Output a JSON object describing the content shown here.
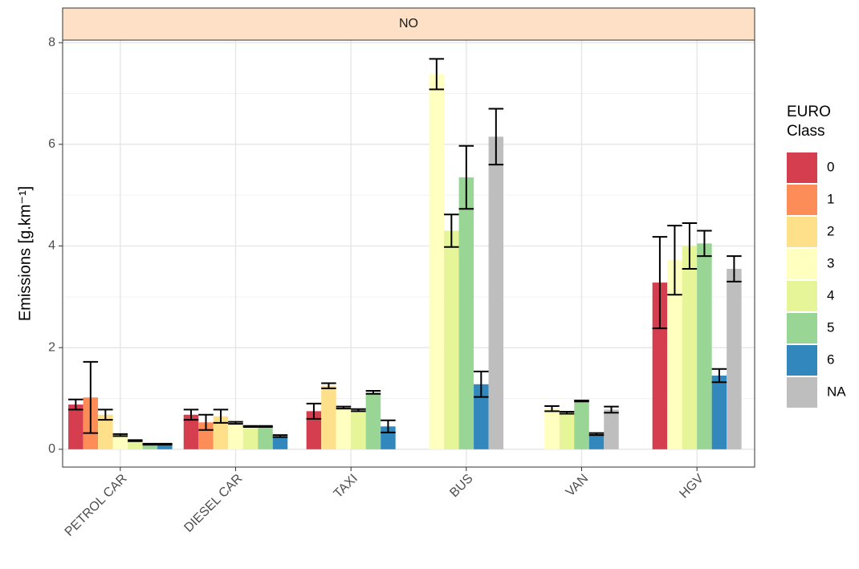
{
  "chart_data": {
    "type": "bar",
    "facet": "NO",
    "y_label": "Emissions [g.km⁻¹]",
    "legend_title": [
      "EURO",
      "Class"
    ],
    "categories": [
      "PETROL CAR",
      "DIESEL CAR",
      "TAXI",
      "BUS",
      "VAN",
      "HGV"
    ],
    "series": [
      {
        "name": "0",
        "color": "#d53e4f",
        "values": [
          0.88,
          0.68,
          0.75,
          null,
          null,
          3.28
        ],
        "errors": [
          0.1,
          0.1,
          0.15,
          null,
          null,
          0.9
        ]
      },
      {
        "name": "1",
        "color": "#fc8d59",
        "values": [
          1.02,
          0.53,
          null,
          null,
          null,
          null
        ],
        "errors": [
          0.7,
          0.15,
          null,
          null,
          null,
          null
        ]
      },
      {
        "name": "2",
        "color": "#fee08b",
        "values": [
          0.68,
          0.65,
          1.25,
          null,
          null,
          null
        ],
        "errors": [
          0.1,
          0.13,
          0.05,
          null,
          null,
          null
        ]
      },
      {
        "name": "3",
        "color": "#ffffbf",
        "values": [
          0.28,
          0.52,
          0.82,
          7.38,
          0.8,
          3.72
        ],
        "errors": [
          0.02,
          0.02,
          0.02,
          0.3,
          0.05,
          0.68
        ]
      },
      {
        "name": "4",
        "color": "#e6f598",
        "values": [
          0.17,
          0.45,
          0.77,
          4.3,
          0.72,
          4.0
        ],
        "errors": [
          0.01,
          0.01,
          0.02,
          0.32,
          0.02,
          0.45
        ]
      },
      {
        "name": "5",
        "color": "#99d594",
        "values": [
          0.1,
          0.45,
          1.12,
          5.35,
          0.95,
          4.05
        ],
        "errors": [
          0.01,
          0.01,
          0.03,
          0.62,
          0.01,
          0.25
        ]
      },
      {
        "name": "6",
        "color": "#3288bd",
        "values": [
          0.1,
          0.26,
          0.45,
          1.28,
          0.3,
          1.45
        ],
        "errors": [
          0.01,
          0.02,
          0.12,
          0.25,
          0.02,
          0.13
        ]
      },
      {
        "name": "NA",
        "color": "#bebebe",
        "values": [
          null,
          null,
          null,
          6.15,
          0.78,
          3.55
        ],
        "errors": [
          null,
          null,
          null,
          0.55,
          0.06,
          0.25
        ]
      }
    ],
    "ylim": [
      -0.35,
      8.05
    ],
    "yticks": [
      0,
      2,
      4,
      6,
      8
    ],
    "grid": true
  }
}
